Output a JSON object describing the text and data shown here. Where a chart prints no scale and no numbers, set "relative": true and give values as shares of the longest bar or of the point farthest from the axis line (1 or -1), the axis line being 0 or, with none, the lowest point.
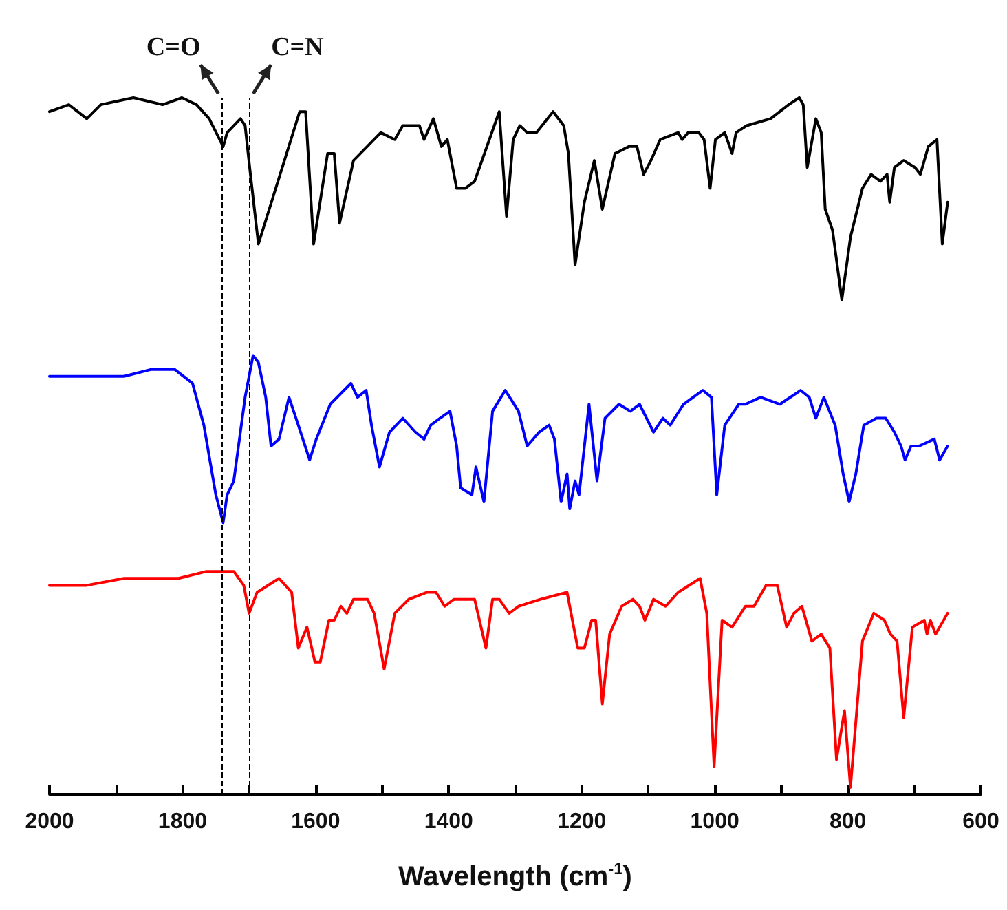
{
  "chart_data": {
    "type": "line",
    "relative": true,
    "xlabel": "Wavelength (cm$^{-1}$)",
    "xlim": [
      2000,
      600
    ],
    "xticks": [
      2000,
      {
        "value": 1900,
        "label": null
      },
      1800,
      {
        "value": 1700,
        "label": null
      },
      1600,
      {
        "value": 1500,
        "label": null
      },
      1400,
      {
        "value": 1300,
        "label": null
      },
      1200,
      {
        "value": 1100,
        "label": null
      },
      1000,
      {
        "value": 900,
        "label": null
      },
      800,
      {
        "value": 700,
        "label": null
      },
      600
    ],
    "marker": "none",
    "line_style": "solid",
    "ref_lines": [
      {
        "axis": "x",
        "value": 1740,
        "label": "C=O",
        "color": "#000000",
        "line_style": "dashed"
      },
      {
        "axis": "x",
        "value": 1700,
        "label": "C=N",
        "color": "#000000",
        "line_style": "dashed"
      }
    ],
    "series": [
      {
        "color": "#000000",
        "x": [
          2000,
          1971,
          1944,
          1923,
          1874,
          1830,
          1801,
          1779,
          1760,
          1739,
          1733,
          1713,
          1706,
          1698,
          1686,
          1624,
          1615,
          1603,
          1582,
          1572,
          1564,
          1543,
          1502,
          1481,
          1469,
          1444,
          1437,
          1423,
          1411,
          1402,
          1388,
          1375,
          1361,
          1324,
          1313,
          1303,
          1293,
          1282,
          1268,
          1243,
          1227,
          1220,
          1210,
          1196,
          1181,
          1169,
          1150,
          1129,
          1117,
          1107,
          1096,
          1082,
          1055,
          1049,
          1040,
          1024,
          1016,
          1007,
          999,
          985,
          974,
          968,
          952,
          916,
          889,
          873,
          867,
          861,
          848,
          840,
          834,
          823,
          809,
          796,
          778,
          765,
          751,
          741,
          737,
          730,
          716,
          699,
          691,
          679,
          666,
          658,
          650
        ],
        "values": [
          0.98,
          0.99,
          0.97,
          0.99,
          1.0,
          0.99,
          1.0,
          0.99,
          0.97,
          0.93,
          0.95,
          0.97,
          0.96,
          0.89,
          0.79,
          0.98,
          0.98,
          0.79,
          0.92,
          0.92,
          0.82,
          0.91,
          0.95,
          0.94,
          0.96,
          0.96,
          0.94,
          0.97,
          0.93,
          0.94,
          0.87,
          0.87,
          0.88,
          0.98,
          0.83,
          0.94,
          0.96,
          0.95,
          0.95,
          0.98,
          0.96,
          0.92,
          0.76,
          0.85,
          0.91,
          0.84,
          0.92,
          0.93,
          0.93,
          0.89,
          0.91,
          0.94,
          0.95,
          0.94,
          0.95,
          0.95,
          0.94,
          0.87,
          0.94,
          0.95,
          0.92,
          0.95,
          0.96,
          0.97,
          0.99,
          1.0,
          0.99,
          0.9,
          0.97,
          0.95,
          0.84,
          0.81,
          0.71,
          0.8,
          0.87,
          0.89,
          0.88,
          0.89,
          0.85,
          0.9,
          0.91,
          0.9,
          0.89,
          0.93,
          0.94,
          0.79,
          0.85
        ]
      },
      {
        "color": "#0000ff",
        "x": [
          2000,
          1977,
          1930,
          1888,
          1847,
          1812,
          1785,
          1768,
          1750,
          1739,
          1733,
          1723,
          1706,
          1694,
          1686,
          1675,
          1667,
          1655,
          1640,
          1626,
          1609,
          1599,
          1578,
          1547,
          1537,
          1524,
          1516,
          1504,
          1489,
          1469,
          1450,
          1437,
          1427,
          1413,
          1398,
          1388,
          1382,
          1365,
          1359,
          1347,
          1334,
          1315,
          1295,
          1282,
          1264,
          1249,
          1241,
          1231,
          1222,
          1218,
          1210,
          1204,
          1189,
          1177,
          1165,
          1144,
          1127,
          1113,
          1092,
          1078,
          1067,
          1047,
          1018,
          1005,
          997,
          985,
          964,
          954,
          931,
          902,
          871,
          858,
          848,
          836,
          819,
          807,
          798,
          788,
          776,
          757,
          743,
          730,
          720,
          714,
          705,
          693,
          670,
          662,
          650
        ],
        "values": [
          0.6,
          0.6,
          0.6,
          0.6,
          0.61,
          0.61,
          0.59,
          0.53,
          0.43,
          0.39,
          0.43,
          0.45,
          0.57,
          0.63,
          0.62,
          0.57,
          0.5,
          0.51,
          0.57,
          0.53,
          0.48,
          0.51,
          0.56,
          0.59,
          0.57,
          0.58,
          0.53,
          0.47,
          0.52,
          0.54,
          0.52,
          0.51,
          0.53,
          0.54,
          0.55,
          0.5,
          0.44,
          0.43,
          0.47,
          0.42,
          0.55,
          0.58,
          0.55,
          0.5,
          0.52,
          0.53,
          0.51,
          0.42,
          0.46,
          0.41,
          0.45,
          0.43,
          0.56,
          0.45,
          0.54,
          0.56,
          0.55,
          0.56,
          0.52,
          0.54,
          0.53,
          0.56,
          0.58,
          0.57,
          0.43,
          0.53,
          0.56,
          0.56,
          0.57,
          0.56,
          0.58,
          0.57,
          0.54,
          0.57,
          0.53,
          0.46,
          0.42,
          0.46,
          0.53,
          0.54,
          0.54,
          0.52,
          0.5,
          0.48,
          0.5,
          0.5,
          0.51,
          0.48,
          0.5
        ]
      },
      {
        "color": "#ff0000",
        "x": [
          2000,
          1944,
          1888,
          1847,
          1806,
          1764,
          1723,
          1708,
          1700,
          1688,
          1655,
          1636,
          1626,
          1613,
          1601,
          1593,
          1580,
          1572,
          1562,
          1553,
          1543,
          1522,
          1512,
          1497,
          1481,
          1460,
          1433,
          1419,
          1406,
          1392,
          1361,
          1344,
          1334,
          1324,
          1309,
          1295,
          1262,
          1222,
          1206,
          1196,
          1185,
          1179,
          1169,
          1158,
          1140,
          1123,
          1113,
          1105,
          1092,
          1074,
          1055,
          1022,
          1012,
          1001,
          989,
          974,
          954,
          941,
          923,
          906,
          892,
          881,
          869,
          854,
          840,
          827,
          817,
          805,
          796,
          778,
          761,
          745,
          736,
          726,
          716,
          703,
          685,
          681,
          676,
          668,
          650
        ],
        "values": [
          0.3,
          0.3,
          0.31,
          0.31,
          0.31,
          0.32,
          0.32,
          0.3,
          0.26,
          0.29,
          0.31,
          0.29,
          0.21,
          0.24,
          0.19,
          0.19,
          0.25,
          0.25,
          0.27,
          0.26,
          0.28,
          0.28,
          0.26,
          0.18,
          0.26,
          0.28,
          0.29,
          0.29,
          0.27,
          0.28,
          0.28,
          0.21,
          0.28,
          0.28,
          0.26,
          0.27,
          0.28,
          0.29,
          0.21,
          0.21,
          0.25,
          0.25,
          0.13,
          0.23,
          0.27,
          0.28,
          0.27,
          0.25,
          0.28,
          0.27,
          0.29,
          0.31,
          0.26,
          0.04,
          0.25,
          0.24,
          0.27,
          0.27,
          0.3,
          0.3,
          0.24,
          0.26,
          0.27,
          0.22,
          0.23,
          0.21,
          0.05,
          0.12,
          0.01,
          0.22,
          0.26,
          0.25,
          0.23,
          0.22,
          0.11,
          0.24,
          0.25,
          0.23,
          0.25,
          0.23,
          0.26
        ]
      }
    ]
  }
}
